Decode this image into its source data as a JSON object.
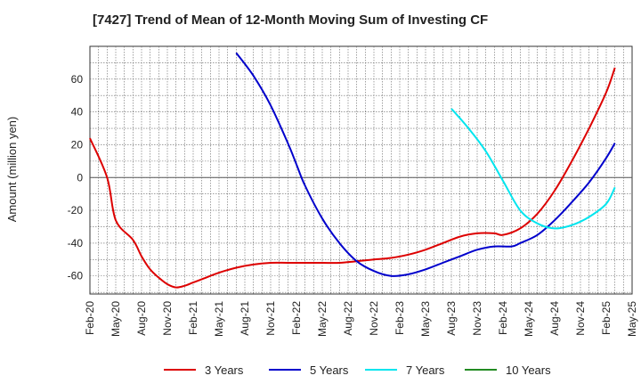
{
  "chart_data": {
    "type": "line",
    "title": "[7427]  Trend of Mean of 12-Month Moving Sum of Investing CF",
    "xlabel": "",
    "ylabel": "Amount (million yen)",
    "x_tick_labels": [
      "Feb-20",
      "May-20",
      "Aug-20",
      "Nov-20",
      "Feb-21",
      "May-21",
      "Aug-21",
      "Nov-21",
      "Feb-22",
      "May-22",
      "Aug-22",
      "Nov-22",
      "Feb-23",
      "May-23",
      "Aug-23",
      "Nov-23",
      "Feb-24",
      "May-24",
      "Aug-24",
      "Nov-24",
      "Feb-25",
      "May-25"
    ],
    "ylim": [
      -71,
      80
    ],
    "yticks": [
      -60,
      -40,
      -20,
      0,
      20,
      40,
      60
    ],
    "grid": true,
    "legend_position": "bottom",
    "series": [
      {
        "name": "3 Years",
        "color": "#dd0000",
        "points": [
          [
            "Feb-20",
            24
          ],
          [
            "Apr-20",
            0
          ],
          [
            "May-20",
            -26
          ],
          [
            "Jul-20",
            -38
          ],
          [
            "Aug-20",
            -48
          ],
          [
            "Sep-20",
            -56
          ],
          [
            "Oct-20",
            -61
          ],
          [
            "Nov-20",
            -65
          ],
          [
            "Dec-20",
            -67
          ],
          [
            "Jan-21",
            -66
          ],
          [
            "Feb-21",
            -64
          ],
          [
            "Mar-21",
            -62
          ],
          [
            "May-21",
            -58
          ],
          [
            "Jul-21",
            -55
          ],
          [
            "Sep-21",
            -53
          ],
          [
            "Nov-21",
            -52
          ],
          [
            "Jan-22",
            -52
          ],
          [
            "Mar-22",
            -52
          ],
          [
            "May-22",
            -52
          ],
          [
            "Jul-22",
            -52
          ],
          [
            "Sep-22",
            -51
          ],
          [
            "Nov-22",
            -50
          ],
          [
            "Jan-23",
            -49
          ],
          [
            "Mar-23",
            -47
          ],
          [
            "May-23",
            -44
          ],
          [
            "Jul-23",
            -40
          ],
          [
            "Sep-23",
            -36
          ],
          [
            "Nov-23",
            -34
          ],
          [
            "Jan-24",
            -34
          ],
          [
            "Feb-24",
            -35
          ],
          [
            "Apr-24",
            -31
          ],
          [
            "Jun-24",
            -22
          ],
          [
            "Aug-24",
            -8
          ],
          [
            "Oct-24",
            10
          ],
          [
            "Dec-24",
            30
          ],
          [
            "Feb-25",
            52
          ],
          [
            "Mar-25",
            67
          ]
        ]
      },
      {
        "name": "5 Years",
        "color": "#0000cc",
        "points": [
          [
            "Jul-21",
            76
          ],
          [
            "Sep-21",
            62
          ],
          [
            "Nov-21",
            44
          ],
          [
            "Jan-22",
            21
          ],
          [
            "Feb-22",
            8
          ],
          [
            "Mar-22",
            -5
          ],
          [
            "May-22",
            -25
          ],
          [
            "Jul-22",
            -40
          ],
          [
            "Sep-22",
            -51
          ],
          [
            "Nov-22",
            -57
          ],
          [
            "Jan-23",
            -60
          ],
          [
            "Mar-23",
            -59
          ],
          [
            "May-23",
            -56
          ],
          [
            "Jul-23",
            -52
          ],
          [
            "Sep-23",
            -48
          ],
          [
            "Nov-23",
            -44
          ],
          [
            "Jan-24",
            -42
          ],
          [
            "Mar-24",
            -42
          ],
          [
            "Apr-24",
            -40
          ],
          [
            "Jun-24",
            -35
          ],
          [
            "Aug-24",
            -26
          ],
          [
            "Oct-24",
            -15
          ],
          [
            "Dec-24",
            -3
          ],
          [
            "Feb-25",
            12
          ],
          [
            "Mar-25",
            21
          ]
        ]
      },
      {
        "name": "7 Years",
        "color": "#00e5ee",
        "points": [
          [
            "Aug-23",
            42
          ],
          [
            "Oct-23",
            30
          ],
          [
            "Dec-23",
            16
          ],
          [
            "Feb-24",
            -2
          ],
          [
            "Apr-24",
            -20
          ],
          [
            "Jun-24",
            -28
          ],
          [
            "Aug-24",
            -31
          ],
          [
            "Oct-24",
            -29
          ],
          [
            "Dec-24",
            -24
          ],
          [
            "Feb-25",
            -16
          ],
          [
            "Mar-25",
            -6
          ]
        ]
      },
      {
        "name": "10 Years",
        "color": "#228b22",
        "points": []
      }
    ]
  }
}
